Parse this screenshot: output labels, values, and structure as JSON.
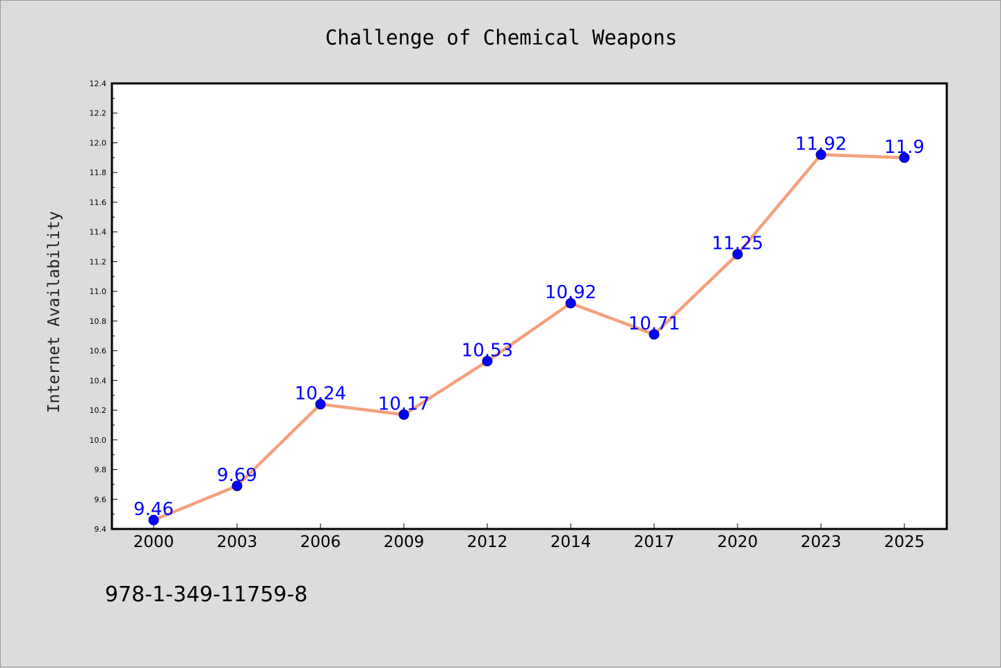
{
  "footer_id": "978-1-349-11759-8",
  "colors": {
    "background": "#dcdcdc",
    "plot_background": "#ffffff",
    "line": "#f4a07e",
    "marker": "#0000ff",
    "label": "#0000ff"
  },
  "chart_data": {
    "type": "line",
    "title": "Challenge of Chemical Weapons",
    "xlabel": "",
    "ylabel": "Internet Availability",
    "categories": [
      "2000",
      "2003",
      "2006",
      "2009",
      "2012",
      "2014",
      "2017",
      "2020",
      "2023",
      "2025"
    ],
    "series": [
      {
        "values": [
          9.46,
          9.69,
          10.24,
          10.17,
          10.53,
          10.92,
          10.71,
          11.25,
          11.92,
          11.9
        ]
      }
    ],
    "data_labels": [
      "9.46",
      "9.69",
      "10.24",
      "10.17",
      "10.53",
      "10.92",
      "10.71",
      "11.25",
      "11.92",
      "11.9"
    ],
    "ylim": [
      9.4,
      12.4
    ],
    "yticks": [
      "9.4",
      "9.6",
      "9.8",
      "10.0",
      "10.2",
      "10.4",
      "10.6",
      "10.8",
      "11.0",
      "11.2",
      "11.4",
      "11.6",
      "11.8",
      "12.0",
      "12.2",
      "12.4"
    ],
    "grid": false,
    "legend": false
  }
}
